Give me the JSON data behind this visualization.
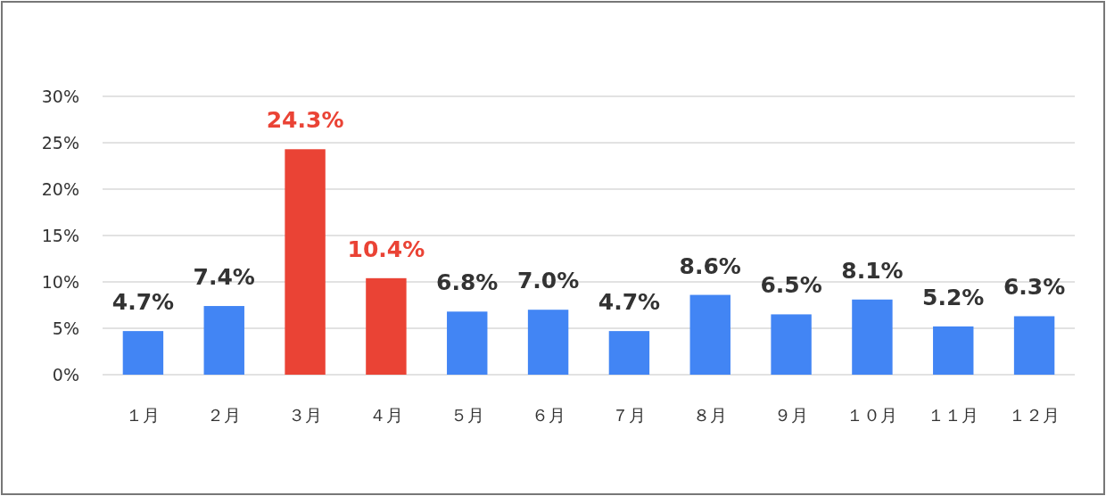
{
  "chart_data": {
    "type": "bar",
    "categories": [
      "１月",
      "２月",
      "３月",
      "４月",
      "５月",
      "６月",
      "７月",
      "８月",
      "９月",
      "１０月",
      "１１月",
      "１２月"
    ],
    "values": [
      4.7,
      7.4,
      24.3,
      10.4,
      6.8,
      7.0,
      4.7,
      8.6,
      6.5,
      8.1,
      5.2,
      6.3
    ],
    "colors": [
      "#4285f4",
      "#4285f4",
      "#ea4335",
      "#ea4335",
      "#4285f4",
      "#4285f4",
      "#4285f4",
      "#4285f4",
      "#4285f4",
      "#4285f4",
      "#4285f4",
      "#4285f4"
    ],
    "value_labels": [
      "4.7%",
      "7.4%",
      "24.3%",
      "10.4%",
      "6.8%",
      "7.0%",
      "4.7%",
      "8.6%",
      "6.5%",
      "8.1%",
      "5.2%",
      "6.3%"
    ],
    "ylim": [
      0,
      30
    ],
    "yticks": [
      {
        "value": 0,
        "label": "0%"
      },
      {
        "value": 5,
        "label": "5%"
      },
      {
        "value": 10,
        "label": "10%"
      },
      {
        "value": 15,
        "label": "15%"
      },
      {
        "value": 20,
        "label": "20%"
      },
      {
        "value": 25,
        "label": "25%"
      },
      {
        "value": 30,
        "label": "30%"
      }
    ],
    "grid": "y"
  }
}
